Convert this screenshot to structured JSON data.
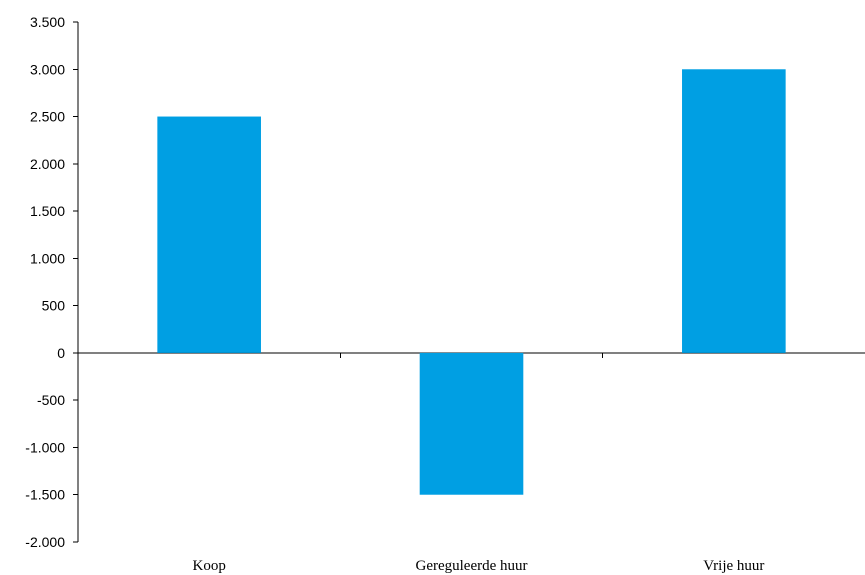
{
  "chart_data": {
    "type": "bar",
    "title": "",
    "xlabel": "",
    "ylabel": "",
    "categories": [
      "Koop",
      "Gereguleerde huur",
      "Vrije huur"
    ],
    "values": [
      2500,
      -1500,
      3000
    ],
    "ylim": [
      -2000,
      3500
    ],
    "yticks": [
      -2000,
      -1500,
      -1000,
      -500,
      0,
      500,
      1000,
      1500,
      2000,
      2500,
      3000,
      3500
    ],
    "ytick_labels": [
      "-2.000",
      "-1.500",
      "-1.000",
      "-500",
      "0",
      "500",
      "1.000",
      "1.500",
      "2.000",
      "2.500",
      "3.000",
      "3.500"
    ],
    "bar_color": "#009fe3",
    "grid": false,
    "legend": "none"
  }
}
